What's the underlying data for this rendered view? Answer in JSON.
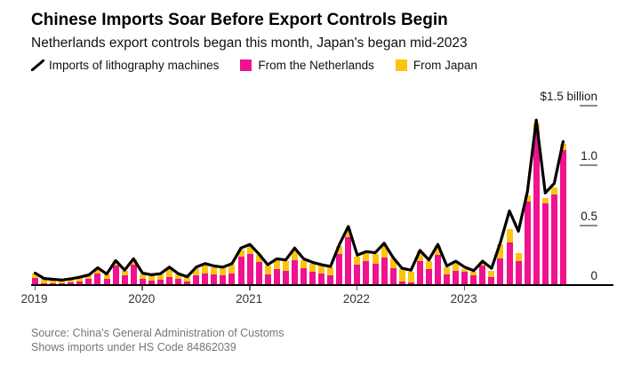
{
  "header": {
    "title": "Chinese Imports Soar Before Export Controls Begin",
    "subtitle": "Netherlands export controls began this month, Japan's began mid-2023"
  },
  "legend": [
    {
      "label": "Imports of lithography machines",
      "marker": "line",
      "color": "#000000"
    },
    {
      "label": "From the Netherlands",
      "marker": "square",
      "color": "#f0128f"
    },
    {
      "label": "From Japan",
      "marker": "square",
      "color": "#fdc40e"
    }
  ],
  "colors": {
    "netherlands": "#f0128f",
    "japan": "#fdc40e",
    "line": "#000000",
    "axis": "#000000",
    "tick": "#8c8c8c",
    "source_text": "#767676"
  },
  "footer": {
    "source": "Source: China's General Administration of Customs",
    "note": "Shows imports under HS Code 84862039"
  },
  "chart_data": {
    "type": "bar",
    "subtype": "stacked bars with line overlay",
    "unit": "US$ billions per month",
    "ylim": [
      0,
      1.5
    ],
    "grid": false,
    "legend_position": "top",
    "y_ticks": [
      {
        "value": 1.5,
        "label": "$1.5 billion"
      },
      {
        "value": 1.0,
        "label": "1.0"
      },
      {
        "value": 0.5,
        "label": "0.5"
      },
      {
        "value": 0,
        "label": "0"
      }
    ],
    "x_tick_years": [
      {
        "label": "2019",
        "month_index": 0
      },
      {
        "label": "2020",
        "month_index": 12
      },
      {
        "label": "2021",
        "month_index": 24
      },
      {
        "label": "2022",
        "month_index": 36
      },
      {
        "label": "2023",
        "month_index": 48
      }
    ],
    "categories": [
      "2019-01",
      "2019-02",
      "2019-03",
      "2019-04",
      "2019-05",
      "2019-06",
      "2019-07",
      "2019-08",
      "2019-09",
      "2019-10",
      "2019-11",
      "2019-12",
      "2020-01",
      "2020-02",
      "2020-03",
      "2020-04",
      "2020-05",
      "2020-06",
      "2020-07",
      "2020-08",
      "2020-09",
      "2020-10",
      "2020-11",
      "2020-12",
      "2021-01",
      "2021-02",
      "2021-03",
      "2021-04",
      "2021-05",
      "2021-06",
      "2021-07",
      "2021-08",
      "2021-09",
      "2021-10",
      "2021-11",
      "2021-12",
      "2022-01",
      "2022-02",
      "2022-03",
      "2022-04",
      "2022-05",
      "2022-06",
      "2022-07",
      "2022-08",
      "2022-09",
      "2022-10",
      "2022-11",
      "2022-12",
      "2023-01",
      "2023-02",
      "2023-03",
      "2023-04",
      "2023-05",
      "2023-06",
      "2023-07",
      "2023-08",
      "2023-09",
      "2023-10",
      "2023-11",
      "2023-12"
    ],
    "series": [
      {
        "name": "From the Netherlands",
        "type": "bar",
        "color": "#f0128f",
        "values": [
          0.06,
          0.015,
          0.012,
          0.012,
          0.02,
          0.03,
          0.05,
          0.1,
          0.055,
          0.16,
          0.08,
          0.17,
          0.05,
          0.04,
          0.045,
          0.07,
          0.05,
          0.03,
          0.08,
          0.1,
          0.09,
          0.08,
          0.1,
          0.24,
          0.26,
          0.19,
          0.09,
          0.13,
          0.12,
          0.21,
          0.14,
          0.11,
          0.1,
          0.085,
          0.26,
          0.4,
          0.17,
          0.2,
          0.18,
          0.23,
          0.14,
          0.03,
          0.025,
          0.2,
          0.13,
          0.25,
          0.09,
          0.12,
          0.11,
          0.08,
          0.16,
          0.07,
          0.22,
          0.36,
          0.2,
          0.7,
          1.28,
          0.68,
          0.76,
          1.13
        ]
      },
      {
        "name": "From Japan",
        "type": "bar",
        "color": "#fdc40e",
        "values": [
          0.035,
          0.035,
          0.03,
          0.025,
          0.028,
          0.03,
          0.028,
          0.035,
          0.032,
          0.038,
          0.038,
          0.042,
          0.04,
          0.04,
          0.045,
          0.07,
          0.04,
          0.035,
          0.06,
          0.07,
          0.06,
          0.06,
          0.07,
          0.06,
          0.07,
          0.06,
          0.07,
          0.08,
          0.08,
          0.09,
          0.07,
          0.07,
          0.06,
          0.06,
          0.07,
          0.07,
          0.07,
          0.07,
          0.08,
          0.1,
          0.08,
          0.1,
          0.09,
          0.08,
          0.07,
          0.08,
          0.06,
          0.07,
          0.02,
          0.03,
          0.03,
          0.05,
          0.12,
          0.11,
          0.07,
          0.05,
          0.07,
          0.05,
          0.06,
          0.05
        ]
      },
      {
        "name": "Imports of lithography machines",
        "type": "line",
        "color": "#000000",
        "values": [
          0.1,
          0.055,
          0.048,
          0.042,
          0.053,
          0.066,
          0.085,
          0.145,
          0.092,
          0.205,
          0.125,
          0.22,
          0.1,
          0.086,
          0.095,
          0.15,
          0.095,
          0.07,
          0.15,
          0.18,
          0.16,
          0.15,
          0.18,
          0.31,
          0.34,
          0.26,
          0.17,
          0.22,
          0.21,
          0.31,
          0.22,
          0.19,
          0.17,
          0.155,
          0.34,
          0.49,
          0.25,
          0.28,
          0.27,
          0.35,
          0.23,
          0.14,
          0.125,
          0.29,
          0.21,
          0.34,
          0.16,
          0.2,
          0.15,
          0.12,
          0.2,
          0.14,
          0.36,
          0.62,
          0.45,
          0.78,
          1.38,
          0.77,
          0.85,
          1.2
        ]
      }
    ]
  }
}
